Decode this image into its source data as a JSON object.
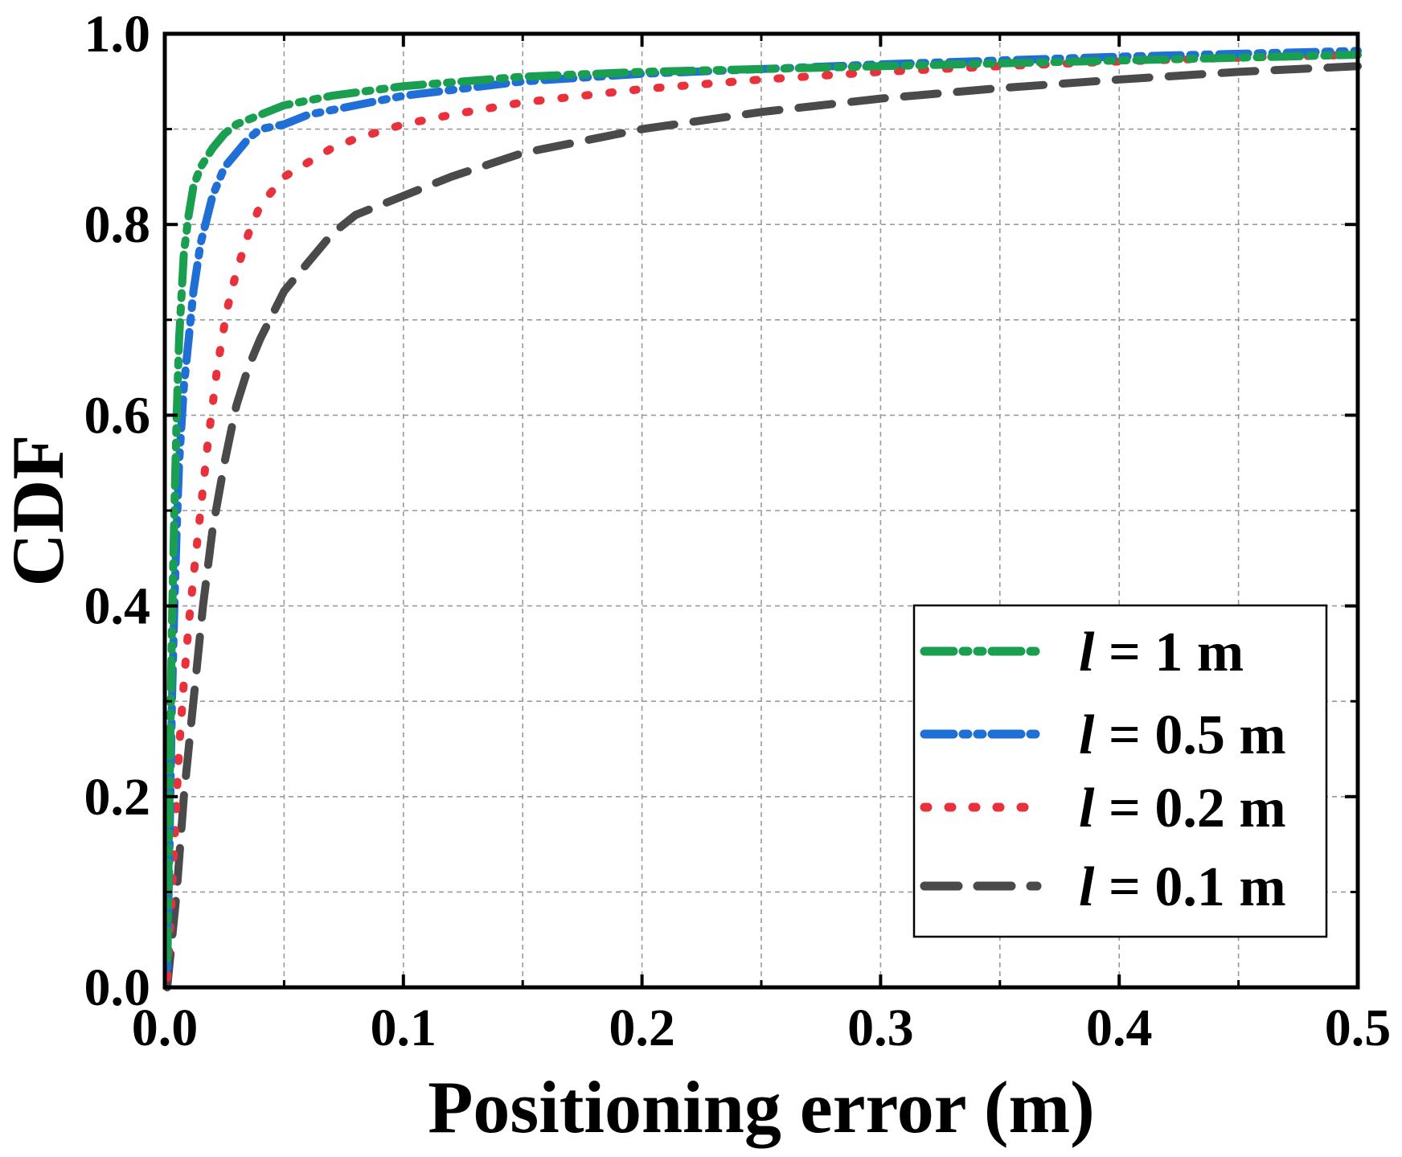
{
  "chart_data": {
    "type": "line",
    "title": "",
    "xlabel": "Positioning error (m)",
    "ylabel": "CDF",
    "xlim": [
      0,
      0.5
    ],
    "ylim": [
      0,
      1.0
    ],
    "grid": true,
    "legend_position": "bottom-right",
    "xticks": [
      "0.0",
      "0.1",
      "0.2",
      "0.3",
      "0.4",
      "0.5"
    ],
    "yticks": [
      "0.0",
      "0.2",
      "0.4",
      "0.6",
      "0.8",
      "1.0"
    ],
    "series": [
      {
        "name_var": "l",
        "name_rest": " = 1 m",
        "color": "#1a9e50",
        "dash": "36 12 6 12 6 12",
        "x": [
          0.001,
          0.002,
          0.003,
          0.004,
          0.005,
          0.006,
          0.008,
          0.01,
          0.012,
          0.015,
          0.02,
          0.025,
          0.03,
          0.04,
          0.05,
          0.07,
          0.1,
          0.15,
          0.2,
          0.25,
          0.3,
          0.35,
          0.4,
          0.45,
          0.5
        ],
        "y": [
          0.03,
          0.2,
          0.38,
          0.5,
          0.6,
          0.68,
          0.77,
          0.81,
          0.84,
          0.86,
          0.88,
          0.895,
          0.905,
          0.915,
          0.925,
          0.935,
          0.945,
          0.955,
          0.96,
          0.963,
          0.966,
          0.969,
          0.972,
          0.975,
          0.978
        ]
      },
      {
        "name_var": "l",
        "name_rest": " = 0.5 m",
        "color": "#1f6fd6",
        "dash": "36 12 6 12 6 12",
        "x": [
          0.001,
          0.002,
          0.003,
          0.004,
          0.005,
          0.006,
          0.008,
          0.01,
          0.012,
          0.015,
          0.02,
          0.025,
          0.03,
          0.035,
          0.04,
          0.05,
          0.06,
          0.08,
          0.1,
          0.15,
          0.2,
          0.25,
          0.3,
          0.35,
          0.4,
          0.45,
          0.5
        ],
        "y": [
          0.02,
          0.15,
          0.3,
          0.4,
          0.48,
          0.55,
          0.63,
          0.68,
          0.73,
          0.78,
          0.83,
          0.86,
          0.875,
          0.89,
          0.9,
          0.905,
          0.915,
          0.925,
          0.935,
          0.95,
          0.958,
          0.963,
          0.968,
          0.972,
          0.976,
          0.979,
          0.982
        ]
      },
      {
        "name_var": "l",
        "name_rest": " = 0.2 m",
        "color": "#e8313a",
        "dash": "4 26",
        "x": [
          0.001,
          0.002,
          0.004,
          0.006,
          0.008,
          0.01,
          0.012,
          0.015,
          0.018,
          0.022,
          0.026,
          0.03,
          0.035,
          0.04,
          0.05,
          0.06,
          0.07,
          0.08,
          0.1,
          0.12,
          0.15,
          0.2,
          0.25,
          0.3,
          0.35,
          0.4,
          0.45,
          0.5
        ],
        "y": [
          0.01,
          0.05,
          0.15,
          0.25,
          0.32,
          0.38,
          0.43,
          0.5,
          0.57,
          0.65,
          0.71,
          0.75,
          0.79,
          0.82,
          0.85,
          0.865,
          0.88,
          0.89,
          0.905,
          0.915,
          0.928,
          0.942,
          0.952,
          0.96,
          0.966,
          0.971,
          0.975,
          0.978
        ]
      },
      {
        "name_var": "l",
        "name_rest": " = 0.1 m",
        "color": "#4a4a4a",
        "dash": "42 24",
        "x": [
          0.001,
          0.003,
          0.005,
          0.008,
          0.012,
          0.016,
          0.02,
          0.025,
          0.03,
          0.035,
          0.04,
          0.05,
          0.06,
          0.07,
          0.08,
          0.1,
          0.12,
          0.15,
          0.2,
          0.25,
          0.3,
          0.35,
          0.4,
          0.45,
          0.5
        ],
        "y": [
          0.0,
          0.05,
          0.1,
          0.2,
          0.3,
          0.4,
          0.48,
          0.55,
          0.61,
          0.65,
          0.68,
          0.73,
          0.76,
          0.79,
          0.81,
          0.83,
          0.85,
          0.875,
          0.9,
          0.918,
          0.932,
          0.943,
          0.952,
          0.96,
          0.966
        ]
      }
    ]
  }
}
